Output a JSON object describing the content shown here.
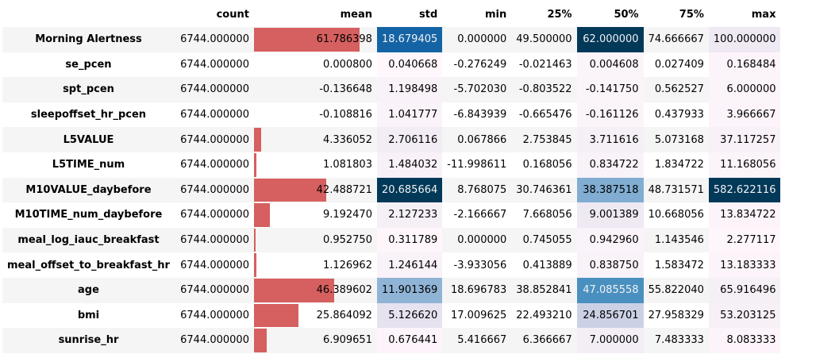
{
  "columns": [
    "count",
    "mean",
    "std",
    "min",
    "25%",
    "50%",
    "75%",
    "max"
  ],
  "style": {
    "bar_color": "#d65f5f",
    "gradient_low": "#fff7fb",
    "gradient_high": "#023858",
    "zebra_color": "#f5f5f5"
  },
  "rows": [
    {
      "label": "Morning Alertness",
      "count": "6744.000000",
      "mean": "61.786398",
      "std": "18.679405",
      "min": "0.000000",
      "p25": "49.500000",
      "p50": "62.000000",
      "p75": "74.666667",
      "max": "100.000000",
      "mean_bar": 0.86,
      "std_level": 0.9,
      "p50_level": 1.0,
      "max_level": 0.17
    },
    {
      "label": "se_pcen",
      "count": "6744.000000",
      "mean": "0.000800",
      "std": "0.040668",
      "min": "-0.276249",
      "p25": "-0.021463",
      "p50": "0.004608",
      "p75": "0.027409",
      "max": "0.168484",
      "mean_bar": 0.0,
      "std_level": 0.0,
      "p50_level": 0.04,
      "max_level": 0.03
    },
    {
      "label": "spt_pcen",
      "count": "6744.000000",
      "mean": "-0.136648",
      "std": "1.198498",
      "min": "-5.702030",
      "p25": "-0.803522",
      "p50": "-0.141750",
      "p75": "0.562527",
      "max": "6.000000",
      "mean_bar": 0.0,
      "std_level": 0.06,
      "p50_level": 0.04,
      "max_level": 0.04
    },
    {
      "label": "sleepoffset_hr_pcen",
      "count": "6744.000000",
      "mean": "-0.108816",
      "std": "1.041777",
      "min": "-6.843939",
      "p25": "-0.665476",
      "p50": "-0.161126",
      "p75": "0.437933",
      "max": "3.966667",
      "mean_bar": 0.0,
      "std_level": 0.05,
      "p50_level": 0.04,
      "max_level": 0.03
    },
    {
      "label": "L5VALUE",
      "count": "6744.000000",
      "mean": "4.336052",
      "std": "2.706116",
      "min": "0.067866",
      "p25": "2.753845",
      "p50": "3.711616",
      "p75": "5.073168",
      "max": "37.117257",
      "mean_bar": 0.06,
      "std_level": 0.13,
      "p50_level": 0.1,
      "max_level": 0.07
    },
    {
      "label": "L5TIME_num",
      "count": "6744.000000",
      "mean": "1.081803",
      "std": "1.484032",
      "min": "-11.998611",
      "p25": "0.168056",
      "p50": "0.834722",
      "p75": "1.834722",
      "max": "11.168056",
      "mean_bar": 0.02,
      "std_level": 0.07,
      "p50_level": 0.06,
      "max_level": 0.04
    },
    {
      "label": "M10VALUE_daybefore",
      "count": "6744.000000",
      "mean": "42.488721",
      "std": "20.685664",
      "min": "8.768075",
      "p25": "30.746361",
      "p50": "38.387518",
      "p75": "48.731571",
      "max": "582.622116",
      "mean_bar": 0.59,
      "std_level": 1.0,
      "p50_level": 0.62,
      "max_level": 1.0
    },
    {
      "label": "M10TIME_num_daybefore",
      "count": "6744.000000",
      "mean": "9.192470",
      "std": "2.127233",
      "min": "-2.166667",
      "p25": "7.668056",
      "p50": "9.001389",
      "p75": "10.668056",
      "max": "13.834722",
      "mean_bar": 0.13,
      "std_level": 0.1,
      "p50_level": 0.17,
      "max_level": 0.03
    },
    {
      "label": "meal_log_iauc_breakfast",
      "count": "6744.000000",
      "mean": "0.952750",
      "std": "0.311789",
      "min": "0.000000",
      "p25": "0.745055",
      "p50": "0.942960",
      "p75": "1.143546",
      "max": "2.277117",
      "mean_bar": 0.01,
      "std_level": 0.01,
      "p50_level": 0.05,
      "max_level": 0.01
    },
    {
      "label": "meal_offset_to_breakfast_hr",
      "count": "6744.000000",
      "mean": "1.126962",
      "std": "1.246144",
      "min": "-3.933056",
      "p25": "0.413889",
      "p50": "0.838750",
      "p75": "1.583472",
      "max": "13.183333",
      "mean_bar": 0.02,
      "std_level": 0.06,
      "p50_level": 0.06,
      "max_level": 0.03
    },
    {
      "label": "age",
      "count": "6744.000000",
      "mean": "46.389602",
      "std": "11.901369",
      "min": "18.696783",
      "p25": "38.852841",
      "p50": "47.085558",
      "p75": "55.822040",
      "max": "65.916496",
      "mean_bar": 0.65,
      "std_level": 0.58,
      "p50_level": 0.76,
      "max_level": 0.1
    },
    {
      "label": "bmi",
      "count": "6744.000000",
      "mean": "25.864092",
      "std": "5.126620",
      "min": "17.009625",
      "p25": "22.493210",
      "p50": "24.856701",
      "p75": "27.958329",
      "max": "53.203125",
      "mean_bar": 0.36,
      "std_level": 0.25,
      "p50_level": 0.4,
      "max_level": 0.08
    },
    {
      "label": "sunrise_hr",
      "count": "6744.000000",
      "mean": "6.909651",
      "std": "0.676441",
      "min": "5.416667",
      "p25": "6.366667",
      "p50": "7.000000",
      "p75": "7.483333",
      "max": "8.083333",
      "mean_bar": 0.1,
      "std_level": 0.03,
      "p50_level": 0.12,
      "max_level": 0.03
    }
  ]
}
